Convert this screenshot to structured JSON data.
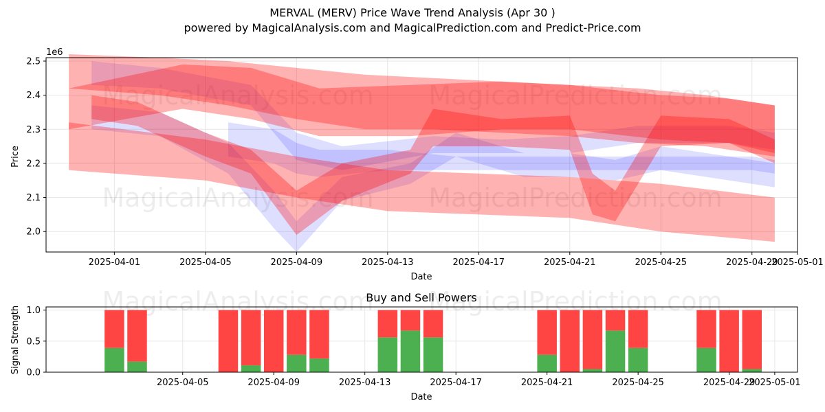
{
  "figure": {
    "title": "MERVAL (MERV) Price Wave Trend Analysis (Apr 30 )",
    "subtitle": "powered by MagicalAnalysis.com and MagicalPrediction.com and Predict-Price.com",
    "watermarks": [
      "MagicalAnalysis.com",
      "MagicalPrediction.com",
      "MagicalAnalysis.com",
      "MagicalPrediction.com",
      "MagicalAnalysis.com",
      "MagicalPrediction.com"
    ]
  },
  "colors": {
    "red_band": "#ff0000",
    "blue_band": "#0000ff",
    "buy": "#4caf50",
    "sell": "#ff4444",
    "grid": "#e6e6e6"
  },
  "chart_data": [
    {
      "type": "area",
      "title": "",
      "xlabel": "Date",
      "ylabel": "Price",
      "y_multiplier": "1e6",
      "xlim": [
        "2025-03-29",
        "2025-05-01"
      ],
      "ylim": [
        1.94,
        2.51
      ],
      "x_ticks": [
        "2025-04-01",
        "2025-04-05",
        "2025-04-09",
        "2025-04-13",
        "2025-04-17",
        "2025-04-21",
        "2025-04-25",
        "2025-04-29",
        "2025-05-01"
      ],
      "y_ticks": [
        "2.0",
        "2.1",
        "2.2",
        "2.3",
        "2.4",
        "2.5"
      ],
      "grid": true,
      "series": [
        {
          "color": "red",
          "x": [
            "2025-03-30",
            "2025-04-03",
            "2025-04-06",
            "2025-04-09",
            "2025-04-12",
            "2025-04-15",
            "2025-04-18",
            "2025-04-21",
            "2025-04-24",
            "2025-04-27",
            "2025-04-30"
          ],
          "upper": [
            2.52,
            2.51,
            2.5,
            2.48,
            2.46,
            2.45,
            2.44,
            2.43,
            2.42,
            2.4,
            2.37
          ],
          "lower": [
            2.42,
            2.4,
            2.37,
            2.33,
            2.3,
            2.3,
            2.29,
            2.28,
            2.26,
            2.25,
            2.22
          ]
        },
        {
          "color": "red",
          "x": [
            "2025-03-30",
            "2025-04-04",
            "2025-04-07",
            "2025-04-10",
            "2025-04-14",
            "2025-04-18",
            "2025-04-21",
            "2025-04-25",
            "2025-04-28",
            "2025-04-30"
          ],
          "upper": [
            2.42,
            2.49,
            2.48,
            2.42,
            2.43,
            2.44,
            2.43,
            2.4,
            2.39,
            2.37
          ],
          "lower": [
            2.3,
            2.36,
            2.33,
            2.28,
            2.28,
            2.3,
            2.3,
            2.27,
            2.26,
            2.23
          ]
        },
        {
          "color": "red",
          "x": [
            "2025-03-30",
            "2025-04-05",
            "2025-04-09",
            "2025-04-13",
            "2025-04-17",
            "2025-04-21",
            "2025-04-25",
            "2025-04-30"
          ],
          "upper": [
            2.32,
            2.27,
            2.22,
            2.18,
            2.17,
            2.16,
            2.14,
            2.1
          ],
          "lower": [
            2.18,
            2.15,
            2.1,
            2.06,
            2.05,
            2.04,
            2.0,
            1.97
          ]
        },
        {
          "color": "red",
          "x": [
            "2025-03-31",
            "2025-04-02",
            "2025-04-05",
            "2025-04-07",
            "2025-04-09",
            "2025-04-11",
            "2025-04-14",
            "2025-04-15",
            "2025-04-18",
            "2025-04-21",
            "2025-04-22",
            "2025-04-23",
            "2025-04-25",
            "2025-04-28",
            "2025-04-30"
          ],
          "upper": [
            2.4,
            2.38,
            2.29,
            2.24,
            2.12,
            2.2,
            2.24,
            2.36,
            2.33,
            2.34,
            2.17,
            2.12,
            2.34,
            2.33,
            2.27
          ],
          "lower": [
            2.33,
            2.31,
            2.22,
            2.17,
            1.99,
            2.09,
            2.17,
            2.25,
            2.25,
            2.24,
            2.05,
            2.03,
            2.25,
            2.26,
            2.2
          ]
        },
        {
          "color": "blue",
          "x": [
            "2025-03-31",
            "2025-04-03",
            "2025-04-07",
            "2025-04-09",
            "2025-04-11",
            "2025-04-15",
            "2025-04-18",
            "2025-04-21",
            "2025-04-24",
            "2025-04-28",
            "2025-04-30"
          ],
          "upper": [
            2.5,
            2.48,
            2.43,
            2.29,
            2.25,
            2.28,
            2.27,
            2.28,
            2.31,
            2.31,
            2.29
          ],
          "lower": [
            2.43,
            2.42,
            2.37,
            2.21,
            2.18,
            2.23,
            2.23,
            2.23,
            2.26,
            2.26,
            2.24
          ]
        },
        {
          "color": "blue",
          "x": [
            "2025-03-31",
            "2025-04-03",
            "2025-04-06",
            "2025-04-08",
            "2025-04-09",
            "2025-04-11",
            "2025-04-14",
            "2025-04-16",
            "2025-04-19",
            "2025-04-21",
            "2025-04-23",
            "2025-04-25",
            "2025-04-29",
            "2025-04-30"
          ],
          "upper": [
            2.37,
            2.35,
            2.26,
            2.12,
            2.03,
            2.16,
            2.2,
            2.29,
            2.23,
            2.23,
            2.21,
            2.25,
            2.21,
            2.2
          ],
          "lower": [
            2.3,
            2.28,
            2.17,
            2.01,
            1.94,
            2.09,
            2.14,
            2.22,
            2.16,
            2.16,
            2.15,
            2.18,
            2.14,
            2.13
          ]
        },
        {
          "color": "blue",
          "x": [
            "2025-04-06",
            "2025-04-08",
            "2025-04-09",
            "2025-04-10",
            "2025-04-13",
            "2025-04-16",
            "2025-04-20",
            "2025-04-25",
            "2025-04-29",
            "2025-04-30"
          ],
          "upper": [
            2.32,
            2.3,
            2.26,
            2.24,
            2.24,
            2.22,
            2.22,
            2.22,
            2.22,
            2.21
          ],
          "lower": [
            2.22,
            2.2,
            2.17,
            2.16,
            2.18,
            2.18,
            2.18,
            2.18,
            2.18,
            2.17
          ]
        }
      ]
    },
    {
      "type": "bar",
      "title": "Buy and Sell Powers",
      "xlabel": "Date",
      "ylabel": "Signal Strength",
      "ylim": [
        0,
        1.05
      ],
      "y_ticks": [
        "0.0",
        "0.5",
        "1.0"
      ],
      "x_ticks": [
        "2025-04-05",
        "2025-04-09",
        "2025-04-13",
        "2025-04-17",
        "2025-04-21",
        "2025-04-25",
        "2025-04-29",
        "2025-05-01"
      ],
      "grid": true,
      "categories": [
        "2025-04-02",
        "2025-04-03",
        "2025-04-07",
        "2025-04-08",
        "2025-04-09",
        "2025-04-10",
        "2025-04-11",
        "2025-04-14",
        "2025-04-15",
        "2025-04-16",
        "2025-04-21",
        "2025-04-22",
        "2025-04-23",
        "2025-04-24",
        "2025-04-25",
        "2025-04-28",
        "2025-04-29",
        "2025-04-30"
      ],
      "series": [
        {
          "key": "buy",
          "values": [
            0.39,
            0.17,
            0.0,
            0.11,
            0.0,
            0.28,
            0.22,
            0.56,
            0.67,
            0.56,
            0.28,
            0.0,
            0.05,
            0.67,
            0.39,
            0.39,
            0.0,
            0.05
          ]
        },
        {
          "key": "sell",
          "values": [
            0.61,
            0.83,
            1.0,
            0.89,
            1.0,
            0.72,
            0.78,
            0.44,
            0.33,
            0.44,
            0.72,
            1.0,
            0.95,
            0.33,
            0.61,
            0.61,
            1.0,
            0.95
          ]
        }
      ]
    }
  ]
}
